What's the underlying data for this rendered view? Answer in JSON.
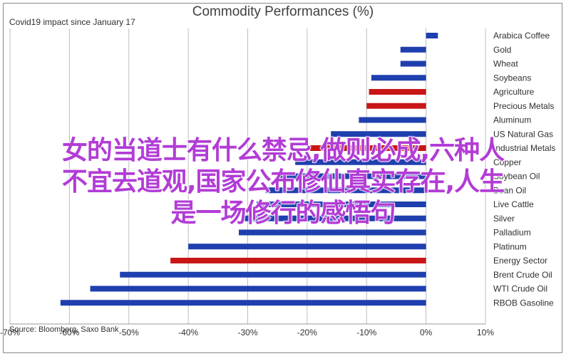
{
  "chart_data": {
    "type": "bar",
    "orientation": "horizontal",
    "title": "Commodity Performances (%)",
    "subtitle": "Covid19 impact since January 17",
    "source": "Source: Bloomberg, Saxo Bank",
    "xlim": [
      -70,
      10
    ],
    "xticks": [
      "-70%",
      "-60%",
      "-50%",
      "-40%",
      "-30%",
      "-20%",
      "-10%",
      "0%",
      "10%"
    ],
    "grid": true,
    "categories": [
      "Arabica Coffee",
      "Gold",
      "Wheat",
      "Soybeans",
      "Agriculture",
      "Precious Metals",
      "Aluminum",
      "US Natural Gas",
      "Industrial Metals",
      "Copper",
      "Soybean Oil",
      "Bean Oil",
      "Live Cattle",
      "Silver",
      "Palladium",
      "Platinum",
      "Energy Sector",
      "Brent Crude Oil",
      "WTI Crude Oil",
      "RBOB Gasoline"
    ],
    "values": [
      2,
      -4.3,
      -4.3,
      -9.2,
      -9.6,
      -10,
      -11.3,
      -16,
      -19.5,
      -22,
      -25,
      -27,
      -28.5,
      -30.5,
      -31.5,
      -40,
      -43,
      -51.5,
      -56.5,
      -61.5
    ],
    "colors": [
      "#1f3fae",
      "#1f3fae",
      "#1f3fae",
      "#1f3fae",
      "#c81616",
      "#c81616",
      "#1f3fae",
      "#1f3fae",
      "#c81616",
      "#1f3fae",
      "#1f3fae",
      "#1f3fae",
      "#1f3fae",
      "#1f3fae",
      "#1f3fae",
      "#1f3fae",
      "#c81616",
      "#1f3fae",
      "#1f3fae",
      "#1f3fae"
    ]
  },
  "overlay_text": {
    "line1": "女的当道士有什么禁忌,做则必成,六种人",
    "line2": "不宜去道观,国家公布修仙真实存在,人生",
    "line3": "是一场修行的感悟句"
  }
}
